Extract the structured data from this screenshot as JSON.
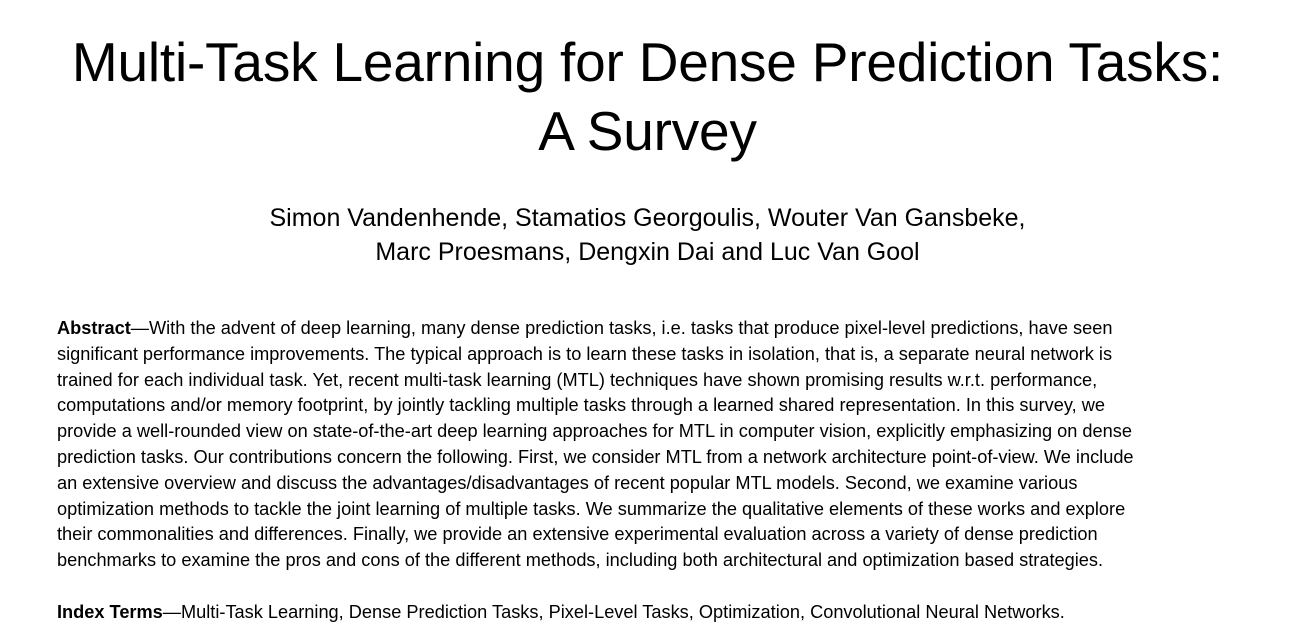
{
  "paper": {
    "title_lines": [
      "Multi-Task Learning for Dense Prediction Tasks:",
      "A Survey"
    ],
    "author_lines": [
      "Simon Vandenhende, Stamatios Georgoulis, Wouter Van Gansbeke,",
      "Marc Proesmans, Dengxin Dai and Luc Van Gool"
    ],
    "abstract": {
      "label": "Abstract",
      "dash": "—",
      "lines": [
        "With the advent of deep learning, many dense prediction tasks, i.e. tasks that produce pixel-level predictions, have seen",
        "significant performance improvements. The typical approach is to learn these tasks in isolation, that is, a separate neural network is",
        "trained for each individual task. Yet, recent multi-task learning (MTL) techniques have shown promising results w.r.t. performance,",
        "computations and/or memory footprint, by jointly tackling multiple tasks through a learned shared representation. In this survey, we",
        "provide a well-rounded view on state-of-the-art deep learning approaches for MTL in computer vision, explicitly emphasizing on dense",
        "prediction tasks. Our contributions concern the following. First, we consider MTL from a network architecture point-of-view. We include",
        "an extensive overview and discuss the advantages/disadvantages of recent popular MTL models. Second, we examine various",
        "optimization methods to tackle the joint learning of multiple tasks. We summarize the qualitative elements of these works and explore",
        "their commonalities and differences. Finally, we provide an extensive experimental evaluation across a variety of dense prediction",
        "benchmarks to examine the pros and cons of the different methods, including both architectural and optimization based strategies."
      ]
    },
    "index_terms": {
      "label": "Index Terms",
      "dash": "—",
      "text": "Multi-Task Learning, Dense Prediction Tasks, Pixel-Level Tasks, Optimization, Convolutional Neural Networks."
    }
  }
}
